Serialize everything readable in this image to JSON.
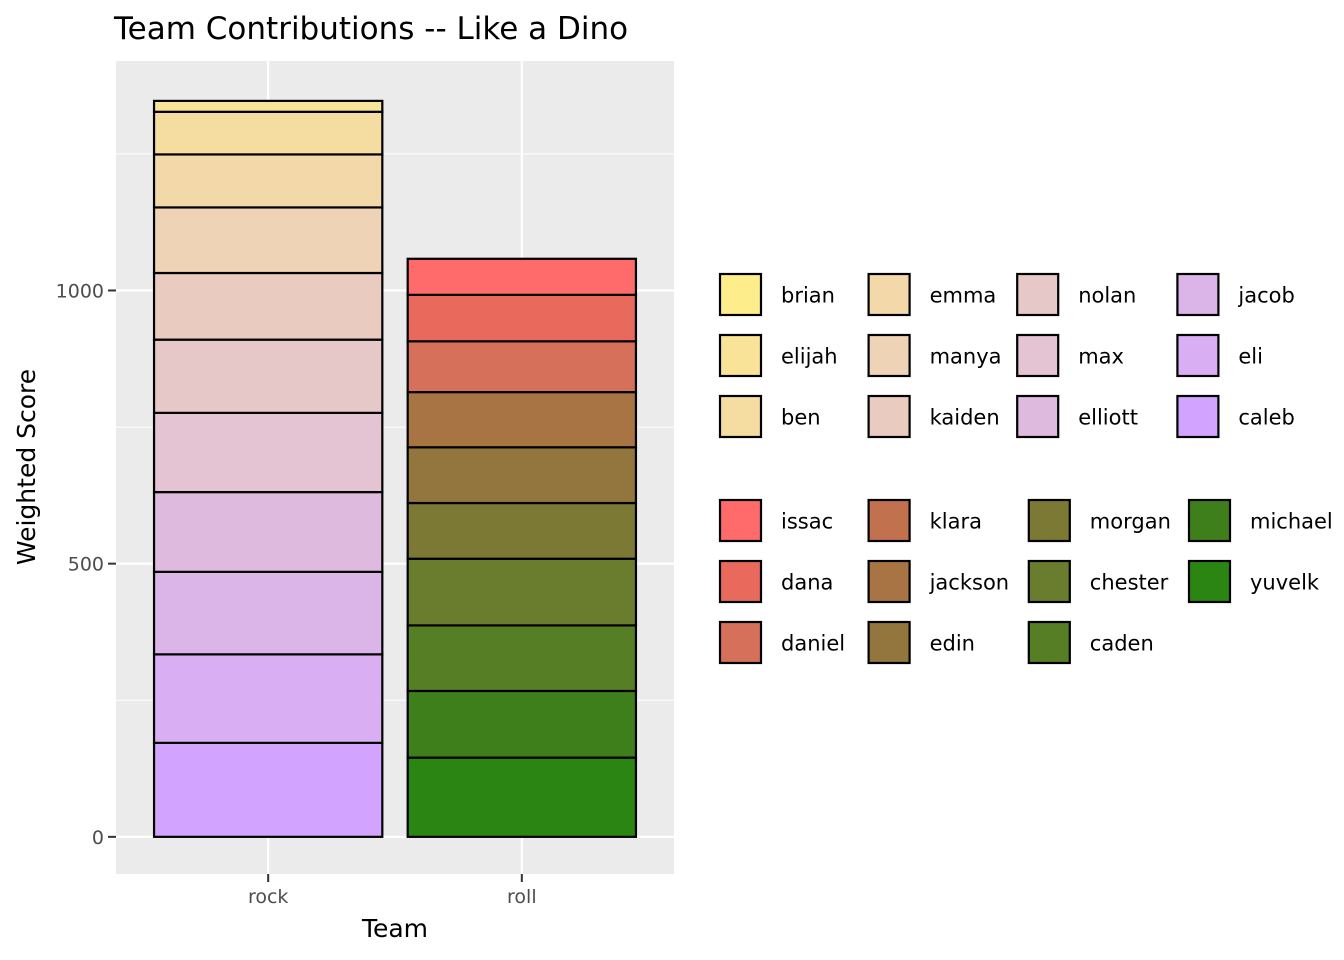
{
  "chart_data": {
    "type": "bar",
    "stacked": true,
    "title": "Team Contributions --  Like a Dino",
    "xlabel": "Team",
    "ylabel": "Weighted Score",
    "ylim": [
      -68,
      1420
    ],
    "yticks": [
      0,
      500,
      1000
    ],
    "grid": true,
    "legend_position": "right",
    "categories": [
      "rock",
      "roll"
    ],
    "bars": [
      {
        "category": "rock",
        "stack_bottom_to_top": [
          {
            "name": "caleb",
            "value": 172
          },
          {
            "name": "eli",
            "value": 162
          },
          {
            "name": "jacob",
            "value": 151
          },
          {
            "name": "elliott",
            "value": 146
          },
          {
            "name": "max",
            "value": 145
          },
          {
            "name": "nolan",
            "value": 134
          },
          {
            "name": "kaiden",
            "value": 122
          },
          {
            "name": "manya",
            "value": 120
          },
          {
            "name": "emma",
            "value": 97
          },
          {
            "name": "ben",
            "value": 78
          },
          {
            "name": "elijah",
            "value": 20
          }
        ]
      },
      {
        "category": "roll",
        "stack_bottom_to_top": [
          {
            "name": "yuvelk",
            "value": 145
          },
          {
            "name": "michael",
            "value": 122
          },
          {
            "name": "caden",
            "value": 120
          },
          {
            "name": "chester",
            "value": 122
          },
          {
            "name": "morgan",
            "value": 102
          },
          {
            "name": "edin",
            "value": 102
          },
          {
            "name": "jackson",
            "value": 101
          },
          {
            "name": "daniel",
            "value": 93
          },
          {
            "name": "dana",
            "value": 85
          },
          {
            "name": "issac",
            "value": 66
          }
        ]
      }
    ],
    "legends": [
      {
        "group": "rock",
        "columns": [
          [
            {
              "name": "brian",
              "color": "#FDEE8B"
            },
            {
              "name": "elijah",
              "color": "#F8E399"
            },
            {
              "name": "ben",
              "color": "#F5DDA1"
            }
          ],
          [
            {
              "name": "emma",
              "color": "#F3D9AA"
            },
            {
              "name": "manya",
              "color": "#EFD3B7"
            },
            {
              "name": "kaiden",
              "color": "#EACBC0"
            }
          ],
          [
            {
              "name": "nolan",
              "color": "#E7C8C8"
            },
            {
              "name": "max",
              "color": "#E4C3D2"
            },
            {
              "name": "elliott",
              "color": "#DFBADF"
            }
          ],
          [
            {
              "name": "jacob",
              "color": "#DCB5E8"
            },
            {
              "name": "eli",
              "color": "#D9AEF2"
            },
            {
              "name": "caleb",
              "color": "#D2A3FF"
            }
          ]
        ]
      },
      {
        "group": "roll",
        "columns": [
          [
            {
              "name": "issac",
              "color": "#FF6A6A"
            },
            {
              "name": "dana",
              "color": "#E96A5D"
            },
            {
              "name": "daniel",
              "color": "#D7705A"
            }
          ],
          [
            {
              "name": "klara",
              "color": "#C2714E"
            },
            {
              "name": "jackson",
              "color": "#A97444"
            },
            {
              "name": "edin",
              "color": "#93763D"
            }
          ],
          [
            {
              "name": "morgan",
              "color": "#7C7935"
            },
            {
              "name": "chester",
              "color": "#6A7C2E"
            },
            {
              "name": "caden",
              "color": "#567E25"
            }
          ],
          [
            {
              "name": "michael",
              "color": "#3E7F1C"
            },
            {
              "name": "yuvelk",
              "color": "#2A8512"
            }
          ]
        ]
      }
    ],
    "colors": {
      "panel_background": "#EBEBEB",
      "grid_major": "#FFFFFF",
      "bar_outline": "#000000"
    }
  }
}
